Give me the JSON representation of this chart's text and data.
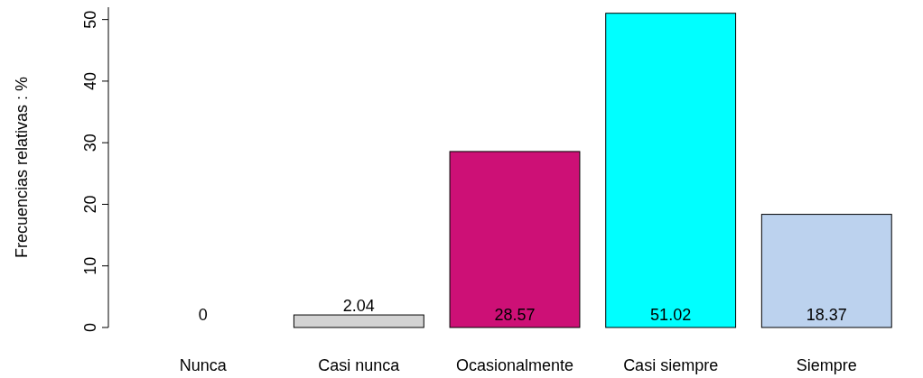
{
  "chart_data": {
    "type": "bar",
    "ylabel": "Frecuencias relativas : %",
    "categories": [
      "Nunca",
      "Casi nunca",
      "Ocasionalmente",
      "Casi siempre",
      "Siempre"
    ],
    "values": [
      0,
      2.04,
      28.57,
      51.02,
      18.37
    ],
    "colors": [
      "#ffffff",
      "#d3d3d3",
      "#cd1076",
      "#00ffff",
      "#bcd2ee"
    ],
    "ylim": [
      0,
      52
    ],
    "yticks": [
      0,
      10,
      20,
      30,
      40,
      50
    ],
    "data_labels": true
  }
}
